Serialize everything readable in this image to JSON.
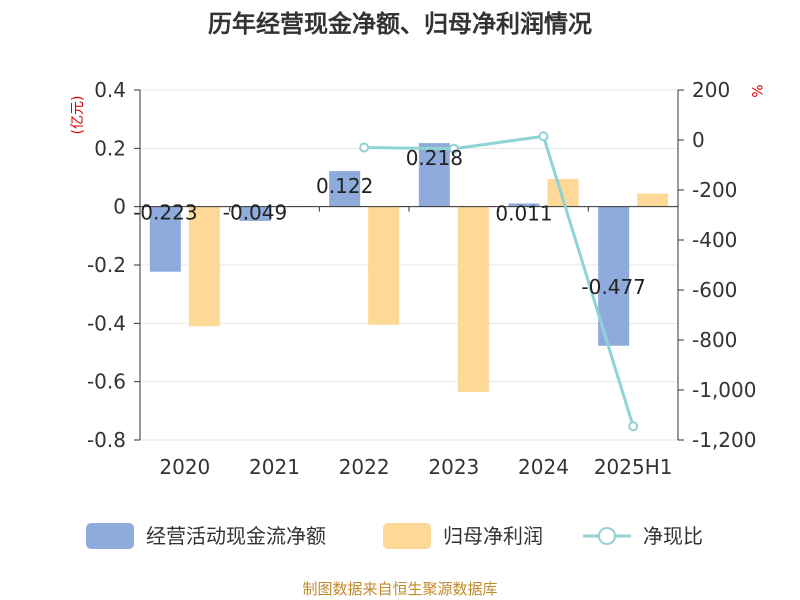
{
  "title": "历年经营现金净额、归母净利润情况",
  "left_unit": "(亿元)",
  "right_unit": "%",
  "source": "制图数据来自恒生聚源数据库",
  "colors": {
    "operating_cf": "#8eabdb",
    "net_profit": "#fdd896",
    "ratio": "#8fd3d6",
    "unit_label": "#e00000",
    "source_text": "#c08a2b"
  },
  "legend": [
    {
      "label": "经营活动现金流净额",
      "icon": "bar-swatch"
    },
    {
      "label": "归母净利润",
      "icon": "bar-swatch"
    },
    {
      "label": "净现比",
      "icon": "line-circle"
    }
  ],
  "chart_data": {
    "type": "bar",
    "title": "历年经营现金净额、归母净利润情况",
    "categories": [
      "2020",
      "2021",
      "2022",
      "2023",
      "2024",
      "2025H1"
    ],
    "y_left": {
      "unit": "(亿元)",
      "range": [
        -0.8,
        0.4
      ],
      "ticks": [
        "0.4",
        "0.2",
        "0",
        "-0.2",
        "-0.4",
        "-0.6",
        "-0.8"
      ]
    },
    "y_right": {
      "unit": "%",
      "range": [
        -1200,
        200
      ],
      "ticks": [
        "200",
        "0",
        "-200",
        "-400",
        "-600",
        "-800",
        "-1,000",
        "-1,200"
      ]
    },
    "grid": true,
    "legend_position": "bottom",
    "series": [
      {
        "name": "经营活动现金流净额",
        "type": "bar",
        "axis": "left",
        "values": [
          -0.223,
          -0.049,
          0.122,
          0.218,
          0.011,
          -0.477
        ],
        "labels": [
          "-0.223",
          "-0.049",
          "0.122",
          "0.218",
          "0.011",
          "-0.477"
        ]
      },
      {
        "name": "归母净利润",
        "type": "bar",
        "axis": "left",
        "values": [
          -0.41,
          0.0,
          -0.405,
          -0.635,
          0.095,
          0.045
        ]
      },
      {
        "name": "净现比",
        "type": "line",
        "axis": "right",
        "values": [
          null,
          null,
          -30,
          -35,
          15,
          -1145
        ]
      }
    ]
  }
}
